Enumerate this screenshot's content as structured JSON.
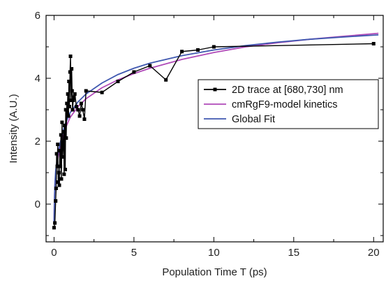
{
  "chart_data": {
    "type": "line",
    "xlabel": "Population Time T (ps)",
    "ylabel": "Intensity (A.U.)",
    "xlim": [
      -0.5,
      20.6
    ],
    "ylim": [
      -1.2,
      6.0
    ],
    "x_ticks": [
      0,
      5,
      10,
      15,
      20
    ],
    "y_ticks": [
      0,
      2,
      4,
      6
    ],
    "legend_position": "center-right",
    "series": [
      {
        "name": "2D trace at [680,730] nm",
        "color": "#000000",
        "marker": "square",
        "x": [
          0.0,
          0.05,
          0.1,
          0.13,
          0.16,
          0.2,
          0.23,
          0.26,
          0.3,
          0.33,
          0.36,
          0.4,
          0.43,
          0.46,
          0.5,
          0.53,
          0.56,
          0.6,
          0.63,
          0.66,
          0.7,
          0.73,
          0.76,
          0.8,
          0.83,
          0.86,
          0.9,
          0.93,
          0.96,
          1.0,
          1.03,
          1.06,
          1.1,
          1.13,
          1.16,
          1.2,
          1.25,
          1.3,
          1.4,
          1.5,
          1.6,
          1.7,
          1.8,
          1.9,
          2.0,
          3.0,
          4.0,
          5.0,
          6.0,
          7.0,
          8.0,
          9.0,
          10.0,
          20.0
        ],
        "y": [
          -0.75,
          -0.6,
          0.1,
          0.5,
          1.6,
          1.2,
          1.9,
          0.7,
          1.0,
          0.6,
          1.7,
          1.2,
          2.2,
          0.8,
          2.6,
          1.5,
          1.8,
          2.3,
          0.95,
          2.5,
          1.1,
          3.0,
          2.1,
          3.2,
          2.9,
          3.5,
          2.8,
          3.9,
          3.1,
          4.2,
          4.7,
          3.3,
          4.3,
          3.6,
          3.0,
          3.3,
          3.4,
          3.5,
          3.1,
          3.0,
          2.8,
          3.2,
          3.0,
          2.7,
          3.6,
          3.55,
          3.9,
          4.2,
          4.4,
          3.95,
          4.85,
          4.9,
          5.0,
          5.1
        ]
      },
      {
        "name": "cmRgF9-model kinetics",
        "color": "#b04ab8",
        "x": [
          0.0,
          0.02,
          0.05,
          0.1,
          0.2,
          0.3,
          0.5,
          0.7,
          1.0,
          1.5,
          2.0,
          3.0,
          4.0,
          5.0,
          6.0,
          8.0,
          10.0,
          12.0,
          14.0,
          16.0,
          18.0,
          20.3
        ],
        "y": [
          -0.55,
          0.05,
          0.55,
          0.95,
          1.35,
          1.6,
          2.05,
          2.4,
          2.75,
          3.1,
          3.35,
          3.7,
          3.95,
          4.15,
          4.32,
          4.6,
          4.82,
          5.0,
          5.13,
          5.24,
          5.33,
          5.43
        ]
      },
      {
        "name": "Global Fit",
        "color": "#4058b0",
        "x": [
          0.0,
          0.02,
          0.05,
          0.1,
          0.2,
          0.3,
          0.5,
          0.7,
          1.0,
          1.5,
          2.0,
          3.0,
          4.0,
          5.0,
          6.0,
          8.0,
          10.0,
          12.0,
          14.0,
          16.0,
          18.0,
          20.3
        ],
        "y": [
          -0.55,
          0.0,
          0.6,
          1.05,
          1.45,
          1.75,
          2.2,
          2.55,
          2.9,
          3.25,
          3.5,
          3.85,
          4.12,
          4.32,
          4.48,
          4.72,
          4.9,
          5.04,
          5.15,
          5.24,
          5.31,
          5.38
        ]
      }
    ]
  }
}
